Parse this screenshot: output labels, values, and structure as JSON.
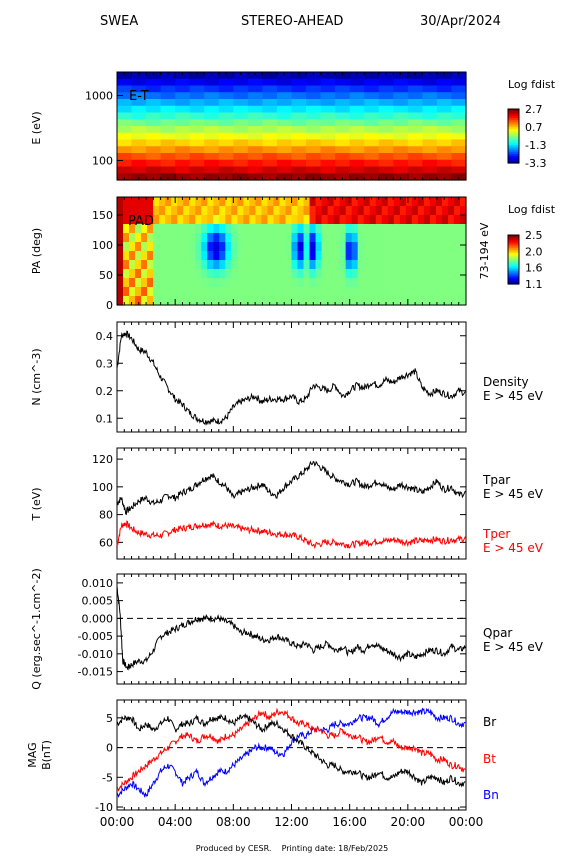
{
  "header": {
    "instrument": "SWEA",
    "spacecraft": "STEREO-AHEAD",
    "date": "30/Apr/2024"
  },
  "footer": {
    "produced_by": "Produced by CESR.",
    "printing_date": "Printing date: 18/Feb/2025"
  },
  "colors": {
    "black": "#000000",
    "red": "#ff0000",
    "blue": "#0000ff"
  },
  "chart_data": [
    {
      "type": "heatmap",
      "panel": "energy-time",
      "tag": "E-T",
      "ylabel": "E (eV)",
      "yscale": "log",
      "ylim": [
        50,
        2300
      ],
      "y_ticks": [
        "1000",
        "100"
      ],
      "colorbar": {
        "label": "Log fdist",
        "ticks": [
          "2.7",
          "0.7",
          "-1.3",
          "-3.3"
        ],
        "range": [
          -3.3,
          2.7
        ]
      }
    },
    {
      "type": "heatmap",
      "panel": "pitch-angle",
      "tag": "PAD",
      "ylabel": "PA (deg)",
      "ylim": [
        0,
        180
      ],
      "y_ticks": [
        "150",
        "100",
        "50",
        "0"
      ],
      "right_label": "73-194 eV",
      "colorbar": {
        "label": "Log fdist",
        "ticks": [
          "2.5",
          "2.0",
          "1.6",
          "1.1"
        ],
        "range": [
          1.1,
          2.5
        ]
      },
      "features": [
        {
          "hour": 6.6,
          "pa": 95,
          "note": "low"
        },
        {
          "hour": 12.3,
          "pa": 95,
          "note": "low"
        },
        {
          "hour": 13.3,
          "pa": 95,
          "note": "low"
        },
        {
          "hour": 15.9,
          "pa": 90,
          "note": "low"
        }
      ]
    },
    {
      "type": "line",
      "panel": "density",
      "ylabel": "N (cm^-3)",
      "ylim": [
        0.05,
        0.45
      ],
      "y_ticks": [
        "0.4",
        "0.3",
        "0.2",
        "0.1"
      ],
      "series": [
        {
          "name": "Density E > 45 eV",
          "color": "#000000",
          "x": [
            0,
            0.3,
            0.6,
            1.0,
            1.5,
            2.0,
            2.5,
            3.0,
            3.5,
            4.0,
            4.5,
            5.0,
            5.5,
            6.0,
            6.5,
            7.0,
            7.5,
            8.0,
            8.5,
            9.0,
            9.5,
            10.0,
            10.5,
            11.0,
            11.5,
            12.0,
            12.5,
            13.0,
            13.5,
            14.0,
            14.5,
            15.0,
            15.5,
            16.0,
            16.5,
            17.0,
            17.5,
            18.0,
            18.5,
            19.0,
            19.5,
            20.0,
            20.5,
            21.0,
            21.5,
            22.0,
            22.5,
            23.0,
            23.5,
            24.0
          ],
          "y": [
            0.28,
            0.4,
            0.41,
            0.39,
            0.35,
            0.34,
            0.3,
            0.25,
            0.21,
            0.17,
            0.15,
            0.12,
            0.1,
            0.09,
            0.09,
            0.09,
            0.1,
            0.14,
            0.16,
            0.17,
            0.18,
            0.16,
            0.17,
            0.17,
            0.17,
            0.18,
            0.16,
            0.17,
            0.22,
            0.21,
            0.2,
            0.22,
            0.18,
            0.2,
            0.22,
            0.21,
            0.23,
            0.22,
            0.24,
            0.23,
            0.25,
            0.26,
            0.27,
            0.21,
            0.19,
            0.2,
            0.19,
            0.18,
            0.2,
            0.19
          ]
        }
      ]
    },
    {
      "type": "line",
      "panel": "temperature",
      "ylabel": "T (eV)",
      "ylim": [
        48,
        128
      ],
      "y_ticks": [
        "120",
        "100",
        "80",
        "60"
      ],
      "series": [
        {
          "name": "Tpar E > 45 eV",
          "color": "#000000",
          "x": [
            0,
            0.3,
            0.6,
            1.0,
            1.5,
            2.0,
            2.5,
            3.0,
            3.5,
            4.0,
            4.5,
            5.0,
            5.5,
            6.0,
            6.5,
            7.0,
            7.5,
            8.0,
            8.5,
            9.0,
            9.5,
            10.0,
            10.5,
            11.0,
            11.5,
            12.0,
            12.5,
            13.0,
            13.5,
            14.0,
            14.5,
            15.0,
            15.5,
            16.0,
            16.5,
            17.0,
            17.5,
            18.0,
            18.5,
            19.0,
            19.5,
            20.0,
            20.5,
            21.0,
            21.5,
            22.0,
            22.5,
            23.0,
            23.5,
            24.0
          ],
          "y": [
            88,
            92,
            82,
            85,
            90,
            92,
            88,
            90,
            94,
            92,
            96,
            98,
            102,
            106,
            108,
            104,
            100,
            92,
            96,
            98,
            100,
            102,
            96,
            94,
            100,
            104,
            108,
            112,
            118,
            114,
            110,
            106,
            104,
            102,
            104,
            100,
            102,
            104,
            100,
            98,
            102,
            100,
            98,
            96,
            100,
            104,
            98,
            100,
            94,
            96
          ]
        },
        {
          "name": "Tper E > 45 eV",
          "color": "#ff0000",
          "x": [
            0,
            0.3,
            0.6,
            1.0,
            1.5,
            2.0,
            2.5,
            3.0,
            3.5,
            4.0,
            4.5,
            5.0,
            5.5,
            6.0,
            6.5,
            7.0,
            7.5,
            8.0,
            8.5,
            9.0,
            9.5,
            10.0,
            10.5,
            11.0,
            11.5,
            12.0,
            12.5,
            13.0,
            13.5,
            14.0,
            14.5,
            15.0,
            15.5,
            16.0,
            16.5,
            17.0,
            17.5,
            18.0,
            18.5,
            19.0,
            19.5,
            20.0,
            20.5,
            21.0,
            21.5,
            22.0,
            22.5,
            23.0,
            23.5,
            24.0
          ],
          "y": [
            58,
            72,
            74,
            70,
            67,
            66,
            65,
            65,
            67,
            69,
            70,
            71,
            72,
            73,
            73,
            72,
            72,
            71,
            70,
            69,
            69,
            68,
            67,
            66,
            66,
            65,
            64,
            61,
            58,
            59,
            60,
            60,
            59,
            58,
            59,
            60,
            60,
            61,
            61,
            62,
            61,
            60,
            61,
            61,
            62,
            62,
            61,
            62,
            62,
            63
          ]
        }
      ]
    },
    {
      "type": "line",
      "panel": "heat-flux",
      "ylabel": "Q (erg.sec^-1.cm^-2)",
      "ylim": [
        -0.0185,
        0.0125
      ],
      "y_ticks": [
        "0.010",
        "0.005",
        "0.000",
        "-0.005",
        "-0.010",
        "-0.015"
      ],
      "reference_line": 0,
      "series": [
        {
          "name": "Qpar E > 45 eV",
          "color": "#000000",
          "x": [
            0,
            0.2,
            0.4,
            0.7,
            1.0,
            1.5,
            2.0,
            2.5,
            3.0,
            3.5,
            4.0,
            4.5,
            5.0,
            5.5,
            6.0,
            6.5,
            7.0,
            7.5,
            8.0,
            8.5,
            9.0,
            9.5,
            10.0,
            10.5,
            11.0,
            11.5,
            12.0,
            12.5,
            13.0,
            13.5,
            14.0,
            14.5,
            15.0,
            15.5,
            16.0,
            16.5,
            17.0,
            17.5,
            18.0,
            18.5,
            19.0,
            19.5,
            20.0,
            20.5,
            21.0,
            21.5,
            22.0,
            22.5,
            23.0,
            23.5,
            24.0
          ],
          "y": [
            0.009,
            0.002,
            -0.012,
            -0.014,
            -0.013,
            -0.012,
            -0.012,
            -0.009,
            -0.005,
            -0.004,
            -0.003,
            -0.002,
            -0.001,
            0.0,
            0.0,
            0.0,
            0.0,
            -0.001,
            -0.002,
            -0.004,
            -0.004,
            -0.005,
            -0.006,
            -0.006,
            -0.005,
            -0.006,
            -0.007,
            -0.008,
            -0.007,
            -0.009,
            -0.008,
            -0.007,
            -0.009,
            -0.008,
            -0.01,
            -0.008,
            -0.009,
            -0.007,
            -0.008,
            -0.009,
            -0.01,
            -0.011,
            -0.01,
            -0.011,
            -0.01,
            -0.009,
            -0.009,
            -0.01,
            -0.008,
            -0.009,
            -0.008
          ]
        }
      ]
    },
    {
      "type": "line",
      "panel": "magnetic-field",
      "ylabel": "MAG B(nT)",
      "ylim": [
        -10.5,
        8
      ],
      "y_ticks": [
        "5",
        "0",
        "-5",
        "-10"
      ],
      "reference_line": 0,
      "x_ticks": [
        "00:00",
        "04:00",
        "08:00",
        "12:00",
        "16:00",
        "20:00",
        "00:00"
      ],
      "series": [
        {
          "name": "Br",
          "color": "#000000",
          "x": [
            0,
            0.5,
            1.0,
            1.5,
            2.0,
            2.5,
            3.0,
            3.5,
            4.0,
            4.5,
            5.0,
            5.5,
            6.0,
            6.5,
            7.0,
            7.5,
            8.0,
            8.5,
            9.0,
            9.5,
            10.0,
            10.5,
            11.0,
            11.5,
            12.0,
            12.5,
            13.0,
            13.5,
            14.0,
            14.5,
            15.0,
            15.5,
            16.0,
            16.5,
            17.0,
            17.5,
            18.0,
            18.5,
            19.0,
            19.5,
            20.0,
            20.5,
            21.0,
            21.5,
            22.0,
            22.5,
            23.0,
            23.5,
            24.0
          ],
          "y": [
            4,
            5,
            5,
            3,
            4,
            3,
            4,
            5,
            3,
            4,
            4,
            5,
            4,
            5,
            5,
            5,
            4,
            5,
            5,
            4,
            3,
            4,
            4,
            3,
            2,
            1,
            0,
            -1,
            -2,
            -3,
            -3,
            -4,
            -4,
            -4,
            -5,
            -5,
            -4,
            -5,
            -5,
            -4,
            -4,
            -5,
            -6,
            -5,
            -5,
            -6,
            -5,
            -6,
            -6
          ]
        },
        {
          "name": "Bt",
          "color": "#ff0000",
          "x": [
            0,
            0.5,
            1.0,
            1.5,
            2.0,
            2.5,
            3.0,
            3.5,
            4.0,
            4.5,
            5.0,
            5.5,
            6.0,
            6.5,
            7.0,
            7.5,
            8.0,
            8.5,
            9.0,
            9.5,
            10.0,
            10.5,
            11.0,
            11.5,
            12.0,
            12.5,
            13.0,
            13.5,
            14.0,
            14.5,
            15.0,
            15.5,
            16.0,
            16.5,
            17.0,
            17.5,
            18.0,
            18.5,
            19.0,
            19.5,
            20.0,
            20.5,
            21.0,
            21.5,
            22.0,
            22.5,
            23.0,
            23.5,
            24.0
          ],
          "y": [
            -7,
            -6,
            -5,
            -4,
            -3,
            -2,
            -1,
            0,
            1,
            2,
            2,
            1,
            2,
            2,
            1,
            2,
            2,
            3,
            4,
            5,
            6,
            5,
            6,
            6,
            5,
            4,
            4,
            3,
            3,
            2,
            2,
            3,
            2,
            2,
            1,
            1,
            2,
            1,
            1,
            0,
            0,
            0,
            -1,
            -1,
            -2,
            -2,
            -3,
            -3,
            -4
          ]
        },
        {
          "name": "Bn",
          "color": "#0000ff",
          "x": [
            0,
            0.5,
            1.0,
            1.5,
            2.0,
            2.5,
            3.0,
            3.5,
            4.0,
            4.5,
            5.0,
            5.5,
            6.0,
            6.5,
            7.0,
            7.5,
            8.0,
            8.5,
            9.0,
            9.5,
            10.0,
            10.5,
            11.0,
            11.5,
            12.0,
            12.5,
            13.0,
            13.5,
            14.0,
            14.5,
            15.0,
            15.5,
            16.0,
            16.5,
            17.0,
            17.5,
            18.0,
            18.5,
            19.0,
            19.5,
            20.0,
            20.5,
            21.0,
            21.5,
            22.0,
            22.5,
            23.0,
            23.5,
            24.0
          ],
          "y": [
            -8,
            -7,
            -6,
            -7,
            -8,
            -6,
            -4,
            -3,
            -4,
            -6,
            -5,
            -4,
            -6,
            -5,
            -4,
            -4,
            -3,
            -2,
            -1,
            0,
            0,
            0,
            -1,
            -1,
            1,
            2,
            2,
            3,
            3,
            3,
            4,
            4,
            4,
            5,
            5,
            5,
            4,
            5,
            6,
            6,
            6,
            6,
            6,
            6,
            5,
            5,
            5,
            4,
            4
          ]
        }
      ]
    }
  ],
  "panel_labels": {
    "energy": {
      "cb_title": "Log fdist"
    },
    "pad": {
      "cb_title": "Log fdist",
      "side": "73-194 eV"
    },
    "density": {
      "line1": "Density",
      "line2": "E > 45 eV"
    },
    "temp_par": {
      "line1": "Tpar",
      "line2": "E > 45 eV"
    },
    "temp_per": {
      "line1": "Tper",
      "line2": "E > 45 eV"
    },
    "qpar": {
      "line1": "Qpar",
      "line2": "E > 45 eV"
    },
    "mag": {
      "br": "Br",
      "bt": "Bt",
      "bn": "Bn"
    }
  }
}
